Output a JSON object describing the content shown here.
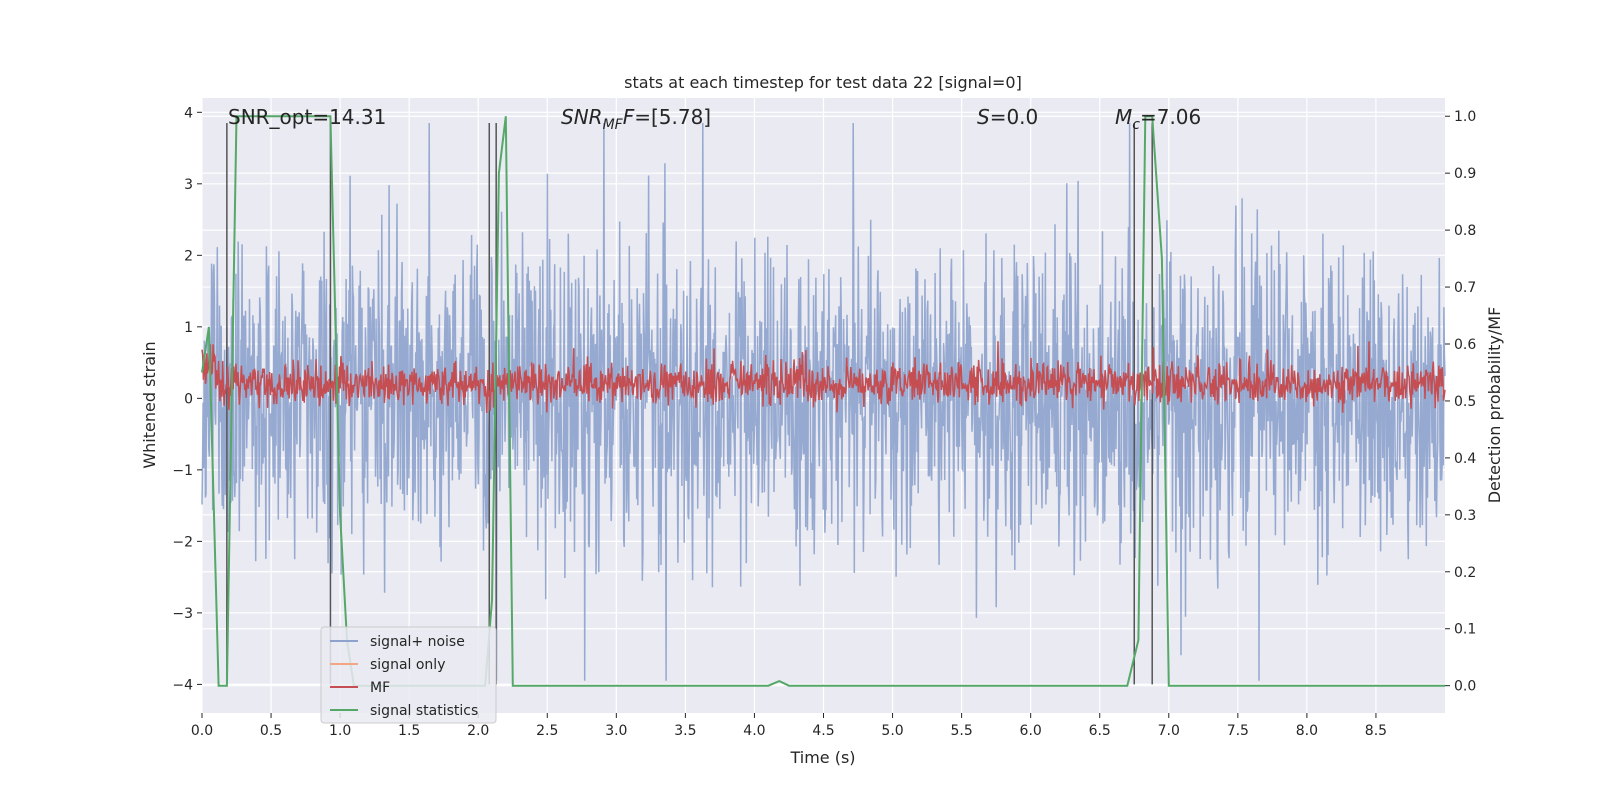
{
  "chart_data": {
    "type": "line",
    "title": "stats at each timestep for test data 22 [signal=0]",
    "xlabel": "Time (s)",
    "ylabel": "Whitened strain",
    "ylabel_right": "Detection probability/MF",
    "xlim": [
      0,
      9.0
    ],
    "ylim": [
      -4.4,
      4.2
    ],
    "ylim_right": [
      -0.048,
      1.032
    ],
    "xticks": [
      "0.0",
      "0.5",
      "1.0",
      "1.5",
      "2.0",
      "2.5",
      "3.0",
      "3.5",
      "4.0",
      "4.5",
      "5.0",
      "5.5",
      "6.0",
      "6.5",
      "7.0",
      "7.5",
      "8.0",
      "8.5"
    ],
    "yticks_left": [
      "4",
      "3",
      "2",
      "1",
      "0",
      "−1",
      "−2",
      "−3",
      "−4"
    ],
    "yticks_right": [
      "1.0",
      "0.9",
      "0.8",
      "0.7",
      "0.6",
      "0.5",
      "0.4",
      "0.3",
      "0.2",
      "0.1",
      "0.0"
    ],
    "annotations": {
      "snr_opt": "SNR_opt=14.31",
      "snr_mf_pre": "SNR",
      "snr_mf_sub": "MF",
      "snr_mf_post": "=[5.78]",
      "s_var": "S",
      "s_val": "=0.0",
      "mc_var": "M",
      "mc_sub": "c",
      "mc_val": "=7.06"
    },
    "vertical_lines_s": [
      0.18,
      0.93,
      2.08,
      2.13,
      6.75,
      6.88
    ],
    "series": [
      {
        "name": "signal+ noise",
        "axis": "left",
        "color": "#8da2cc",
        "description": "whitened noise, amplitude ~ ±3.8"
      },
      {
        "name": "signal only",
        "axis": "left",
        "color": "#f4a582",
        "values": []
      },
      {
        "name": "MF",
        "axis": "right",
        "color": "#c44e52",
        "level": 0.53,
        "spread": 0.03
      },
      {
        "name": "signal statistics",
        "axis": "right",
        "color": "#55a868",
        "x": [
          0.0,
          0.05,
          0.12,
          0.18,
          0.25,
          0.93,
          1.0,
          1.05,
          1.1,
          2.05,
          2.1,
          2.15,
          2.2,
          2.25,
          4.1,
          4.18,
          4.25,
          6.7,
          6.78,
          6.83,
          6.88,
          6.95,
          7.0,
          9.0
        ],
        "y": [
          0.55,
          0.63,
          0.0,
          0.0,
          1.0,
          1.0,
          0.3,
          0.08,
          0.0,
          0.0,
          0.15,
          0.9,
          1.0,
          0.0,
          0.0,
          0.008,
          0.0,
          0.0,
          0.08,
          1.0,
          1.0,
          0.75,
          0.0,
          0.0
        ]
      }
    ],
    "legend": {
      "position": "lower-left",
      "entries": [
        {
          "label": "signal+ noise",
          "color": "#8da2cc"
        },
        {
          "label": "signal only",
          "color": "#f4a582"
        },
        {
          "label": "MF",
          "color": "#c44e52"
        },
        {
          "label": "signal statistics",
          "color": "#55a868"
        }
      ]
    }
  }
}
